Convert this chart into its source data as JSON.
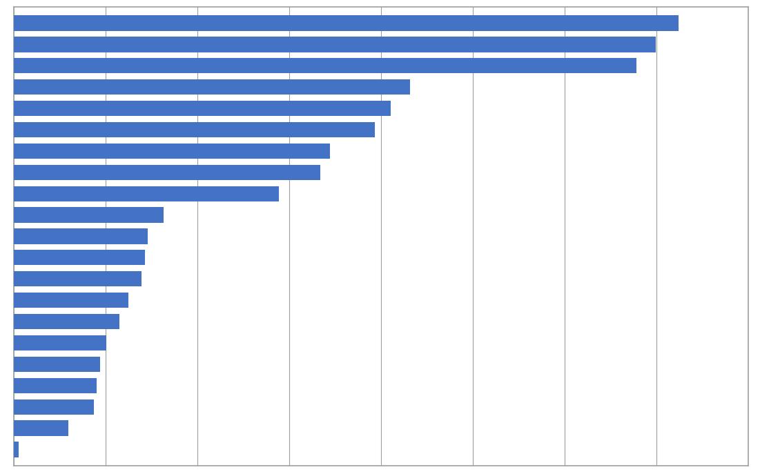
{
  "bar_color": "#4472C4",
  "background_color": "#FFFFFF",
  "grid_color": "#9E9E9E",
  "border_color": "#9E9E9E",
  "values": [
    104.0,
    100.5,
    97.5,
    62.0,
    59.0,
    56.5,
    49.5,
    48.0,
    41.5,
    23.5,
    21.0,
    20.5,
    20.0,
    18.0,
    16.5,
    14.5,
    13.5,
    13.0,
    12.5,
    8.5,
    0.8
  ],
  "n_gridlines": 8,
  "xlim_max": 115,
  "bar_height": 0.72,
  "figsize": [
    11.01,
    6.87
  ],
  "dpi": 100
}
